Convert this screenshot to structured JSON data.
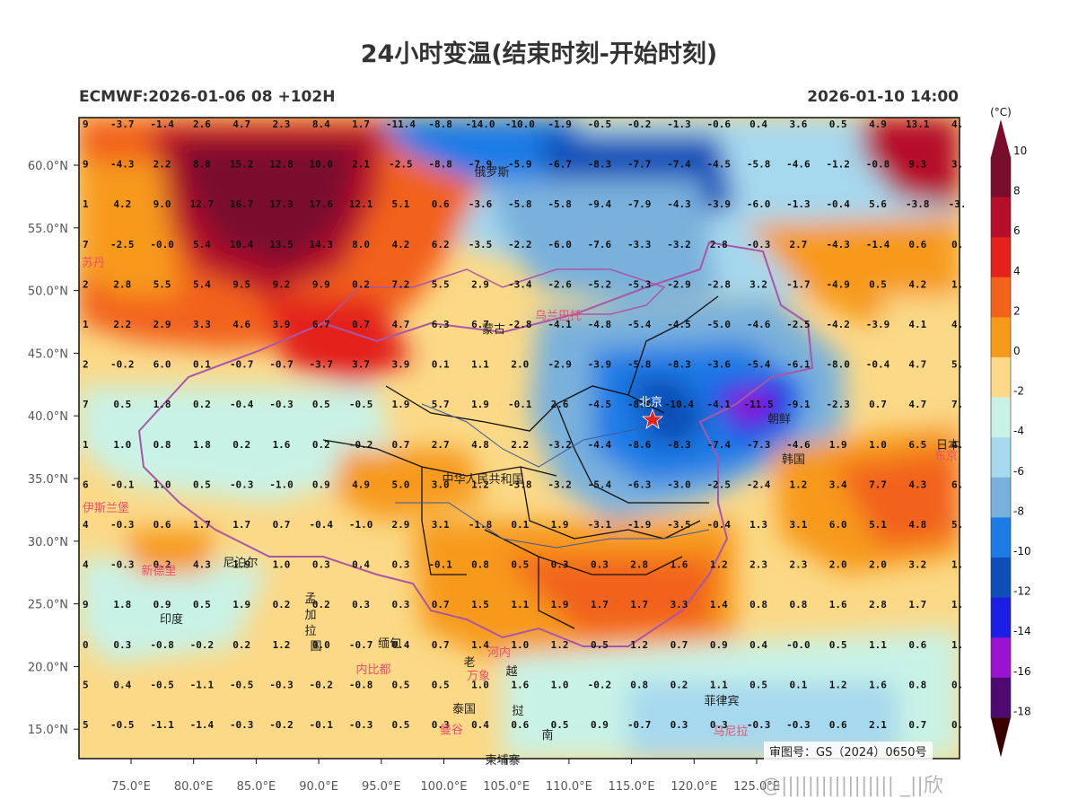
{
  "title": "24小时变温(结束时刻-开始时刻)",
  "model_run": "ECMWF:2026-01-06 08 +102H",
  "valid_time": "2026-01-10 14:00",
  "colorbar": {
    "unit": "(°C)",
    "ticks": [
      "10",
      "8",
      "6",
      "4",
      "2",
      "0",
      "-2",
      "-4",
      "-6",
      "-8",
      "-10",
      "-12",
      "-14",
      "-16",
      "-18"
    ],
    "colors": [
      "#7a0c2e",
      "#b50e2a",
      "#e3221c",
      "#f2621a",
      "#f79a1a",
      "#fbd987",
      "#c9f2e6",
      "#a6d8ee",
      "#79b1dc",
      "#1c7be6",
      "#0c4fb8",
      "#1c1ee6",
      "#9b12d2",
      "#4d0a70",
      "#6b0000"
    ]
  },
  "axes": {
    "lat_labels": [
      "60.0°N",
      "55.0°N",
      "50.0°N",
      "45.0°N",
      "40.0°N",
      "35.0°N",
      "30.0°N",
      "25.0°N",
      "20.0°N",
      "15.0°N"
    ],
    "lon_labels": [
      "75.0°E",
      "80.0°E",
      "85.0°E",
      "90.0°E",
      "95.0°E",
      "100.0°E",
      "105.0°E",
      "110.0°E",
      "115.0°E",
      "120.0°E",
      "125.0°E"
    ]
  },
  "grid_values": [
    [
      "9",
      "-3.7",
      "-1.4",
      "2.6",
      "4.7",
      "2.3",
      "8.4",
      "1.7",
      "-11.4",
      "-8.8",
      "-14.0",
      "-10.0",
      "-1.9",
      "-0.5",
      "-0.2",
      "-1.3",
      "-0.6",
      "0.4",
      "3.6",
      "0.5",
      "4.9",
      "13.1",
      "4."
    ],
    [
      "9",
      "-4.3",
      "2.2",
      "8.8",
      "15.2",
      "12.8",
      "10.0",
      "2.1",
      "-2.5",
      "-8.8",
      "-7.9",
      "-5.9",
      "-6.7",
      "-8.3",
      "-7.7",
      "-7.4",
      "-4.5",
      "-5.8",
      "-4.6",
      "-1.2",
      "-0.8",
      "9.3",
      "3."
    ],
    [
      "1",
      "4.2",
      "9.0",
      "12.7",
      "16.7",
      "17.3",
      "17.6",
      "12.1",
      "5.1",
      "0.6",
      "-3.6",
      "-5.8",
      "-5.8",
      "-9.4",
      "-7.9",
      "-4.3",
      "-3.9",
      "-6.0",
      "-1.3",
      "-0.4",
      "5.6",
      "-3.8",
      "-3."
    ],
    [
      "7",
      "-2.5",
      "-0.0",
      "5.4",
      "10.4",
      "13.5",
      "14.3",
      "8.0",
      "4.2",
      "6.2",
      "-3.5",
      "-2.2",
      "-6.0",
      "-7.6",
      "-3.3",
      "-3.2",
      "2.8",
      "-0.3",
      "2.7",
      "-4.3",
      "-1.4",
      "0.6",
      "0."
    ],
    [
      "2",
      "2.8",
      "5.5",
      "5.4",
      "9.5",
      "9.2",
      "9.9",
      "0.2",
      "7.2",
      "5.5",
      "2.9",
      "-3.4",
      "-2.6",
      "-5.2",
      "-5.3",
      "-2.9",
      "-2.8",
      "3.2",
      "-1.7",
      "-4.9",
      "0.5",
      "4.2",
      "1."
    ],
    [
      "1",
      "2.2",
      "2.9",
      "3.3",
      "4.6",
      "3.9",
      "6.7",
      "0.7",
      "4.7",
      "6.3",
      "6.7",
      "-2.8",
      "-4.1",
      "-4.8",
      "-5.4",
      "-4.5",
      "-5.0",
      "-4.6",
      "-2.5",
      "-4.2",
      "-3.9",
      "4.1",
      "4."
    ],
    [
      "2",
      "-0.2",
      "6.0",
      "0.1",
      "-0.7",
      "-0.7",
      "-3.7",
      "3.7",
      "3.9",
      "0.1",
      "1.1",
      "2.0",
      "-2.9",
      "-3.9",
      "-5.8",
      "-8.3",
      "-3.6",
      "-5.4",
      "-6.1",
      "-8.0",
      "-0.4",
      "4.7",
      "5."
    ],
    [
      "7",
      "0.5",
      "1.8",
      "0.2",
      "-0.4",
      "-0.3",
      "0.5",
      "-0.5",
      "1.9",
      "5.7",
      "1.9",
      "-0.1",
      "2.6",
      "-4.5",
      "-8.0",
      "-10.4",
      "-4.1",
      "-11.5",
      "-9.1",
      "-2.3",
      "0.7",
      "4.7",
      "7."
    ],
    [
      "1",
      "1.0",
      "0.8",
      "1.8",
      "0.2",
      "1.6",
      "0.2",
      "-0.2",
      "0.7",
      "2.7",
      "4.8",
      "2.2",
      "-3.2",
      "-4.4",
      "-8.6",
      "-8.3",
      "-7.4",
      "-7.3",
      "-4.6",
      "1.9",
      "1.0",
      "6.5",
      "4."
    ],
    [
      "6",
      "-0.1",
      "1.0",
      "0.5",
      "-0.3",
      "-1.0",
      "0.9",
      "4.9",
      "5.0",
      "3.0",
      "1.2",
      "-3.8",
      "-3.2",
      "-5.4",
      "-6.3",
      "-3.0",
      "-2.5",
      "-2.4",
      "1.2",
      "3.4",
      "7.7",
      "4.3",
      "6."
    ],
    [
      "4",
      "-0.3",
      "0.6",
      "1.7",
      "1.7",
      "0.7",
      "-0.4",
      "-1.0",
      "2.9",
      "3.1",
      "-1.8",
      "0.1",
      "1.9",
      "-3.1",
      "-1.9",
      "-3.5",
      "-0.4",
      "1.3",
      "3.1",
      "6.0",
      "5.1",
      "4.8",
      "5."
    ],
    [
      "4",
      "-0.3",
      "0.2",
      "4.3",
      "1.9",
      "1.0",
      "0.3",
      "0.4",
      "0.3",
      "-0.1",
      "0.8",
      "0.5",
      "0.3",
      "0.3",
      "2.8",
      "1.6",
      "1.2",
      "2.3",
      "2.3",
      "2.0",
      "2.0",
      "3.2",
      "1."
    ],
    [
      "9",
      "1.8",
      "0.9",
      "0.5",
      "1.9",
      "0.2",
      "0.2",
      "0.3",
      "0.3",
      "0.7",
      "1.5",
      "1.1",
      "1.9",
      "1.7",
      "1.7",
      "3.3",
      "1.4",
      "0.8",
      "0.8",
      "1.6",
      "2.8",
      "1.7",
      "1."
    ],
    [
      "0",
      "0.3",
      "-0.8",
      "-0.2",
      "0.2",
      "1.2",
      "0.0",
      "-0.7",
      "0.4",
      "0.7",
      "1.4",
      "1.0",
      "1.2",
      "0.5",
      "1.2",
      "0.7",
      "0.9",
      "0.4",
      "-0.0",
      "0.5",
      "1.1",
      "0.6",
      "1."
    ],
    [
      "5",
      "0.4",
      "-0.5",
      "-1.1",
      "-0.5",
      "-0.3",
      "-0.2",
      "-0.8",
      "0.5",
      "0.5",
      "1.0",
      "1.6",
      "1.0",
      "-0.2",
      "0.8",
      "0.2",
      "1.1",
      "0.5",
      "0.1",
      "1.2",
      "1.6",
      "0.8",
      "0."
    ],
    [
      "5",
      "-0.5",
      "-1.1",
      "-1.4",
      "-0.3",
      "-0.2",
      "-0.1",
      "-0.3",
      "0.5",
      "0.3",
      "0.4",
      "0.6",
      "0.5",
      "0.9",
      "-0.7",
      "0.3",
      "0.3",
      "-0.3",
      "-0.3",
      "0.6",
      "2.1",
      "0.7",
      "0."
    ]
  ],
  "place_labels": {
    "russia": "俄罗斯",
    "mongolia": "蒙古",
    "ulaanbaatar": "乌兰巴托",
    "kazakhstan_city": "苏丹",
    "beijing": "北京",
    "china": "中华人民共和国",
    "dprk": "朝鲜",
    "rok": "韩国",
    "japan": "日本",
    "tokyo": "东京",
    "islamabad": "伊斯兰堡",
    "newdelhi": "新德里",
    "nepal": "尼泊尔",
    "bangladesh_1": "孟",
    "bangladesh_2": "加",
    "bangladesh_3": "拉",
    "bangladesh_4": "国",
    "india": "印度",
    "myanmar": "缅甸",
    "naypyidaw": "内比都",
    "laos_1": "老",
    "laos_2": "挝",
    "hanoi": "河内",
    "vientiane": "万象",
    "vietnam": "越",
    "vietnam_2": "南",
    "thailand": "泰国",
    "bangkok": "曼谷",
    "cambodia": "柬埔寨",
    "philippines": "菲律宾",
    "manila": "马尼拉"
  },
  "review_number": "审图号：GS（2024）0650号",
  "watermark": "@||||||||||||||||| _||欣"
}
